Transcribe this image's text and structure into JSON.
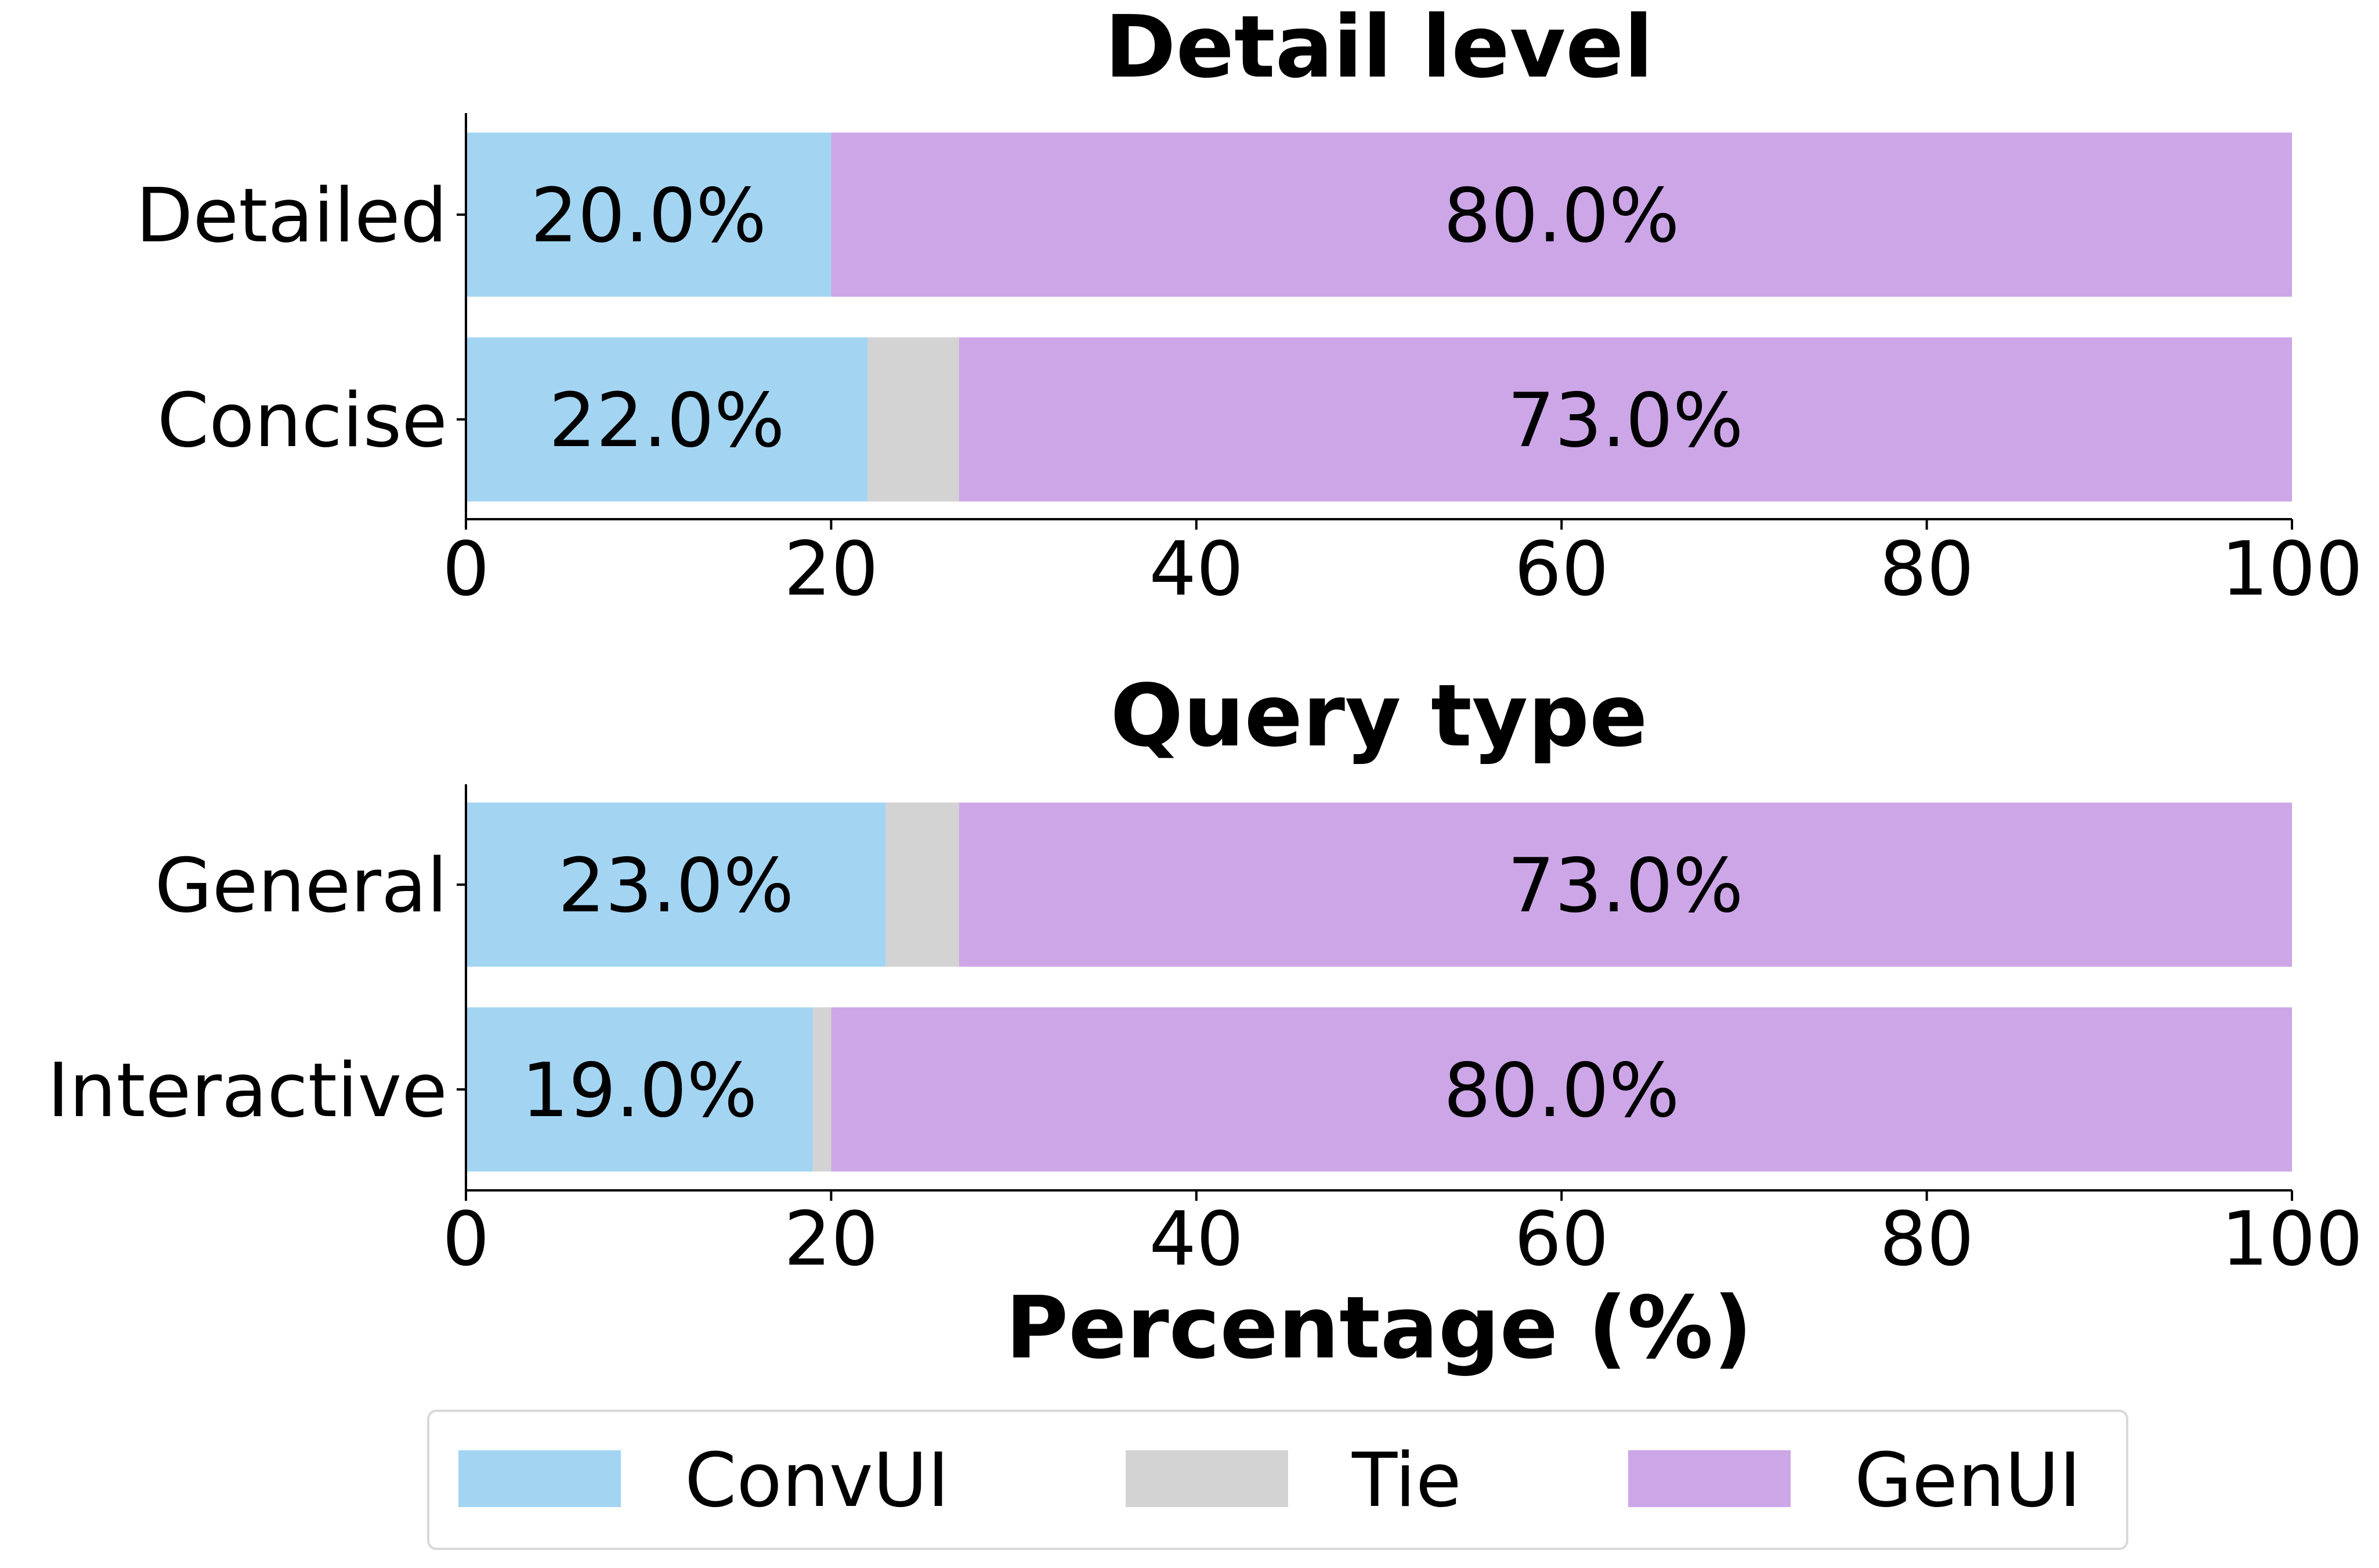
{
  "chart_data": [
    {
      "type": "bar",
      "orientation": "horizontal",
      "stacked": true,
      "title": "Detail level",
      "categories": [
        "Detailed",
        "Concise"
      ],
      "series": [
        {
          "name": "ConvUI",
          "values": [
            20.0,
            22.0
          ]
        },
        {
          "name": "Tie",
          "values": [
            0.0,
            5.0
          ]
        },
        {
          "name": "GenUI",
          "values": [
            80.0,
            73.0
          ]
        }
      ],
      "xticks": [
        "0",
        "20",
        "40",
        "60",
        "80",
        "100"
      ],
      "xlim": [
        0,
        100
      ],
      "xlabel": "",
      "grid": false,
      "data_labels_shown_for": [
        "ConvUI",
        "GenUI"
      ]
    },
    {
      "type": "bar",
      "orientation": "horizontal",
      "stacked": true,
      "title": "Query type",
      "categories": [
        "General",
        "Interactive"
      ],
      "series": [
        {
          "name": "ConvUI",
          "values": [
            23.0,
            19.0
          ]
        },
        {
          "name": "Tie",
          "values": [
            4.0,
            1.0
          ]
        },
        {
          "name": "GenUI",
          "values": [
            73.0,
            80.0
          ]
        }
      ],
      "xticks": [
        "0",
        "20",
        "40",
        "60",
        "80",
        "100"
      ],
      "xlim": [
        0,
        100
      ],
      "xlabel": "Percentage (%)",
      "grid": false,
      "data_labels_shown_for": [
        "ConvUI",
        "GenUI"
      ]
    }
  ],
  "legend": {
    "placement": "bottom-center",
    "items": [
      {
        "name": "ConvUI",
        "color": "#a3d5f3"
      },
      {
        "name": "Tie",
        "color": "#d3d3d3"
      },
      {
        "name": "GenUI",
        "color": "#cda6e8"
      }
    ]
  },
  "colors": {
    "ConvUI": "#a3d5f3",
    "Tie": "#d3d3d3",
    "GenUI": "#cda6e8"
  }
}
